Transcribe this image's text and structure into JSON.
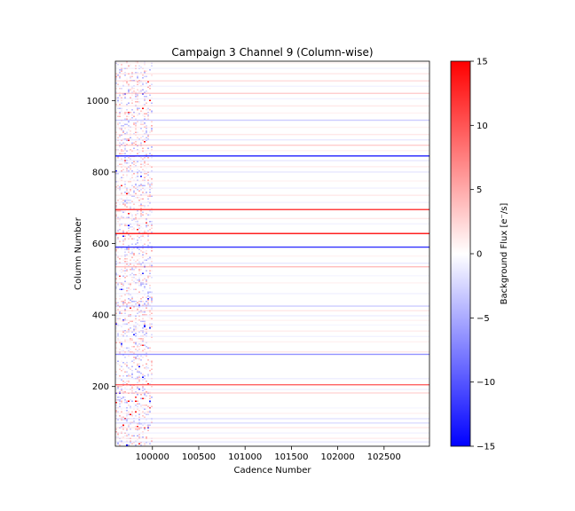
{
  "chart_data": {
    "type": "heatmap",
    "title": "Campaign 3 Channel 9 (Column-wise)",
    "xlabel": "Cadence Number",
    "ylabel": "Column Number",
    "xlim": [
      99600,
      102990
    ],
    "ylim": [
      33,
      1110
    ],
    "x_ticks": [
      100000,
      100500,
      101000,
      101500,
      102000,
      102500
    ],
    "y_ticks": [
      200,
      400,
      600,
      800,
      1000
    ],
    "noisy_region_end": 100000,
    "colormap": "bwr",
    "colorbar": {
      "label": "Background Flux [e$^-$/s]",
      "label_display": "Background Flux [e⁻/s]",
      "range": [
        -15,
        15
      ],
      "ticks": [
        -15,
        -10,
        -5,
        0,
        5,
        10,
        15
      ]
    },
    "columns": [
      {
        "col": 45,
        "value": -3
      },
      {
        "col": 55,
        "value": 2.5
      },
      {
        "col": 70,
        "value": -2
      },
      {
        "col": 85,
        "value": 3
      },
      {
        "col": 98,
        "value": -4
      },
      {
        "col": 110,
        "value": -3.5
      },
      {
        "col": 125,
        "value": 2
      },
      {
        "col": 140,
        "value": -1.5
      },
      {
        "col": 182,
        "value": 4.5
      },
      {
        "col": 192,
        "value": -2
      },
      {
        "col": 205,
        "value": 10
      },
      {
        "col": 222,
        "value": -2.5
      },
      {
        "col": 290,
        "value": -8
      },
      {
        "col": 297,
        "value": 3
      },
      {
        "col": 325,
        "value": 2
      },
      {
        "col": 340,
        "value": -2
      },
      {
        "col": 355,
        "value": 2.5
      },
      {
        "col": 372,
        "value": -1.5
      },
      {
        "col": 385,
        "value": 2
      },
      {
        "col": 398,
        "value": -2.5
      },
      {
        "col": 412,
        "value": 3
      },
      {
        "col": 425,
        "value": -5
      },
      {
        "col": 460,
        "value": -2
      },
      {
        "col": 490,
        "value": 2
      },
      {
        "col": 510,
        "value": -1.5
      },
      {
        "col": 535,
        "value": 6
      },
      {
        "col": 545,
        "value": -3
      },
      {
        "col": 565,
        "value": 2
      },
      {
        "col": 590,
        "value": -12
      },
      {
        "col": 628,
        "value": 14
      },
      {
        "col": 655,
        "value": -2
      },
      {
        "col": 670,
        "value": 3
      },
      {
        "col": 695,
        "value": 12
      },
      {
        "col": 715,
        "value": -2
      },
      {
        "col": 735,
        "value": 3
      },
      {
        "col": 755,
        "value": -2
      },
      {
        "col": 775,
        "value": 2
      },
      {
        "col": 800,
        "value": -3
      },
      {
        "col": 815,
        "value": 2.5
      },
      {
        "col": 832,
        "value": -3
      },
      {
        "col": 845,
        "value": -13
      },
      {
        "col": 860,
        "value": 2
      },
      {
        "col": 875,
        "value": 5
      },
      {
        "col": 890,
        "value": -3
      },
      {
        "col": 905,
        "value": 3
      },
      {
        "col": 925,
        "value": 2
      },
      {
        "col": 945,
        "value": -5
      },
      {
        "col": 965,
        "value": 2
      },
      {
        "col": 985,
        "value": 3
      },
      {
        "col": 1005,
        "value": -2
      },
      {
        "col": 1020,
        "value": 5
      },
      {
        "col": 1040,
        "value": -2
      },
      {
        "col": 1055,
        "value": 4
      },
      {
        "col": 1075,
        "value": 3
      },
      {
        "col": 1090,
        "value": -2
      },
      {
        "col": 1105,
        "value": 2
      }
    ]
  }
}
